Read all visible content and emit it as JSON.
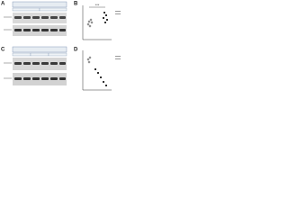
{
  "panels": {
    "a": {
      "label": "A"
    },
    "b": {
      "label": "B",
      "significance": "***"
    },
    "c": {
      "label": "C"
    },
    "d": {
      "label": "D"
    }
  }
}
